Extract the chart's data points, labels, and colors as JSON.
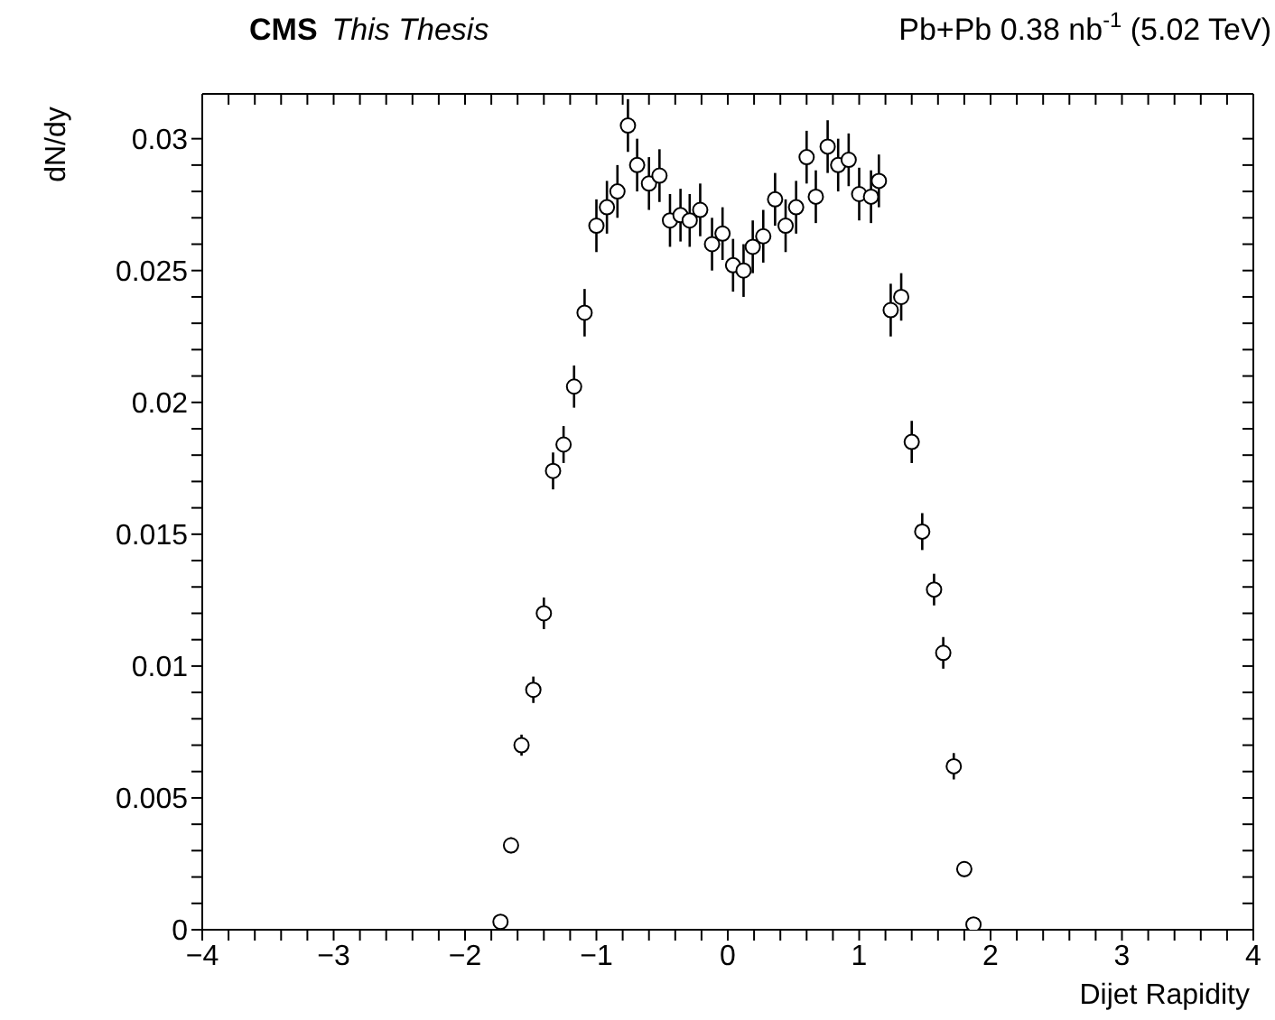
{
  "chart_data": {
    "type": "scatter",
    "title": "CMS",
    "subtitle": "This Thesis",
    "annotations": [
      "Pb+Pb 0.38 nb$^{-1}$ (5.02 TeV)"
    ],
    "xlabel": "Dijet Rapidity",
    "ylabel": "dN/dy",
    "xlim": [
      -4,
      4
    ],
    "xticks": [
      {
        "value": -4,
        "label": "−4"
      },
      {
        "value": -3,
        "label": "−3"
      },
      {
        "value": -2,
        "label": "−2"
      },
      {
        "value": -1,
        "label": "−1"
      },
      0,
      1,
      2,
      3,
      4
    ],
    "ylim": [
      0,
      0.0317
    ],
    "yticks": [
      0,
      0.005,
      0.01,
      0.015,
      0.02,
      0.025,
      0.03
    ],
    "marker": "circle",
    "grid": false,
    "legend": false,
    "series": [
      {
        "color": "#000000",
        "x": [
          -1.73,
          -1.65,
          -1.57,
          -1.48,
          -1.4,
          -1.33,
          -1.25,
          -1.17,
          -1.09,
          -1.0,
          -0.92,
          -0.84,
          -0.76,
          -0.69,
          -0.6,
          -0.52,
          -0.44,
          -0.36,
          -0.29,
          -0.21,
          -0.12,
          -0.04,
          0.04,
          0.12,
          0.19,
          0.27,
          0.36,
          0.44,
          0.52,
          0.6,
          0.67,
          0.76,
          0.84,
          0.92,
          1.0,
          1.09,
          1.15,
          1.24,
          1.32,
          1.4,
          1.48,
          1.57,
          1.64,
          1.72,
          1.8,
          1.87
        ],
        "values": [
          0.0003,
          0.0032,
          0.007,
          0.0091,
          0.012,
          0.0174,
          0.0184,
          0.0206,
          0.0234,
          0.0267,
          0.0274,
          0.028,
          0.0305,
          0.029,
          0.0283,
          0.0286,
          0.0269,
          0.0271,
          0.0269,
          0.0273,
          0.026,
          0.0264,
          0.0252,
          0.025,
          0.0259,
          0.0263,
          0.0277,
          0.0267,
          0.0274,
          0.0293,
          0.0278,
          0.0297,
          0.029,
          0.0292,
          0.0279,
          0.0278,
          0.0284,
          0.0235,
          0.024,
          0.0185,
          0.0151,
          0.0129,
          0.0105,
          0.0062,
          0.0023,
          0.0002
        ],
        "errors": [
          0.0002,
          0.0003,
          0.0004,
          0.0005,
          0.0006,
          0.0007,
          0.0007,
          0.0008,
          0.0009,
          0.001,
          0.001,
          0.001,
          0.001,
          0.001,
          0.001,
          0.001,
          0.001,
          0.001,
          0.001,
          0.001,
          0.001,
          0.001,
          0.001,
          0.001,
          0.001,
          0.001,
          0.001,
          0.001,
          0.001,
          0.001,
          0.001,
          0.001,
          0.001,
          0.001,
          0.001,
          0.001,
          0.001,
          0.001,
          0.0009,
          0.0008,
          0.0007,
          0.0006,
          0.0006,
          0.0005,
          0.0003,
          0.0002
        ]
      }
    ]
  }
}
